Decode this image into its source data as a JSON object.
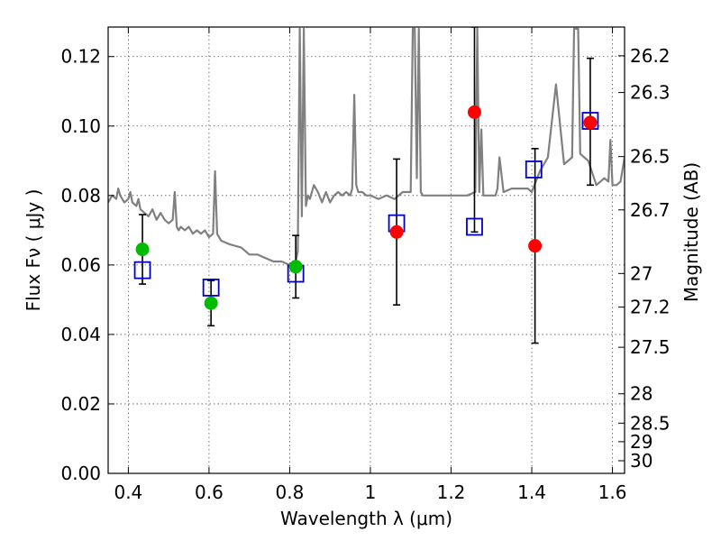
{
  "chart_data": {
    "type": "scatter",
    "xlabel": "Wavelength  λ (μm)",
    "ylabel": "Flux  Fν  ( μJy )",
    "ylabel2": "Magnitude (AB)",
    "xlim": [
      0.35,
      1.63
    ],
    "ylim": [
      0.0,
      0.1285
    ],
    "x_ticks": [
      0.4,
      0.6,
      0.8,
      1.0,
      1.2,
      1.4,
      1.6
    ],
    "x_tick_labels": [
      "0.4",
      "0.6",
      "0.8",
      "1",
      "1.2",
      "1.4",
      "1.6"
    ],
    "y_ticks": [
      0.0,
      0.02,
      0.04,
      0.06,
      0.08,
      0.1,
      0.12
    ],
    "y_tick_labels": [
      "0.00",
      "0.02",
      "0.04",
      "0.06",
      "0.08",
      "0.10",
      "0.12"
    ],
    "mag_ticks": [
      26.2,
      26.3,
      26.5,
      26.7,
      27,
      27.2,
      27.5,
      28,
      28.5,
      29,
      30
    ],
    "mag_tick_labels": [
      "26.2",
      "26.3",
      "26.5",
      "26.7",
      "27",
      "27.2",
      "27.5",
      "28",
      "28.5",
      "29",
      "30"
    ],
    "grid": true,
    "series": [
      {
        "color": "#808080",
        "style": "line",
        "x": [
          0.35,
          0.36,
          0.37,
          0.375,
          0.38,
          0.39,
          0.4,
          0.405,
          0.41,
          0.42,
          0.425,
          0.43,
          0.44,
          0.45,
          0.46,
          0.47,
          0.48,
          0.49,
          0.5,
          0.51,
          0.515,
          0.52,
          0.525,
          0.53,
          0.54,
          0.55,
          0.56,
          0.57,
          0.58,
          0.59,
          0.6,
          0.61,
          0.615,
          0.62,
          0.625,
          0.63,
          0.65,
          0.68,
          0.7,
          0.72,
          0.74,
          0.76,
          0.78,
          0.8,
          0.81,
          0.815,
          0.82,
          0.825,
          0.83,
          0.835,
          0.84,
          0.845,
          0.85,
          0.86,
          0.87,
          0.88,
          0.89,
          0.9,
          0.91,
          0.92,
          0.93,
          0.94,
          0.95,
          0.955,
          0.96,
          0.965,
          0.97,
          0.98,
          0.99,
          1.0,
          1.02,
          1.04,
          1.06,
          1.08,
          1.1,
          1.105,
          1.11,
          1.115,
          1.12,
          1.125,
          1.13,
          1.15,
          1.18,
          1.2,
          1.22,
          1.24,
          1.26,
          1.265,
          1.27,
          1.275,
          1.28,
          1.3,
          1.31,
          1.315,
          1.32,
          1.33,
          1.35,
          1.37,
          1.38,
          1.39,
          1.4,
          1.42,
          1.44,
          1.46,
          1.48,
          1.5,
          1.505,
          1.51,
          1.515,
          1.52,
          1.53,
          1.54,
          1.56,
          1.58,
          1.59,
          1.595,
          1.6,
          1.61,
          1.62,
          1.63
        ],
        "y": [
          0.078,
          0.08,
          0.079,
          0.082,
          0.08,
          0.078,
          0.079,
          0.081,
          0.078,
          0.077,
          0.079,
          0.076,
          0.075,
          0.074,
          0.076,
          0.073,
          0.075,
          0.073,
          0.072,
          0.073,
          0.081,
          0.071,
          0.07,
          0.071,
          0.07,
          0.071,
          0.069,
          0.07,
          0.069,
          0.07,
          0.068,
          0.069,
          0.087,
          0.069,
          0.068,
          0.067,
          0.066,
          0.065,
          0.063,
          0.063,
          0.062,
          0.061,
          0.061,
          0.06,
          0.06,
          0.061,
          0.064,
          0.128,
          0.074,
          0.128,
          0.077,
          0.08,
          0.079,
          0.083,
          0.081,
          0.078,
          0.081,
          0.078,
          0.08,
          0.081,
          0.08,
          0.081,
          0.08,
          0.082,
          0.109,
          0.083,
          0.081,
          0.081,
          0.08,
          0.08,
          0.079,
          0.08,
          0.079,
          0.081,
          0.081,
          0.128,
          0.128,
          0.085,
          0.128,
          0.081,
          0.08,
          0.08,
          0.08,
          0.08,
          0.08,
          0.08,
          0.081,
          0.128,
          0.081,
          0.099,
          0.08,
          0.08,
          0.08,
          0.082,
          0.091,
          0.081,
          0.082,
          0.082,
          0.082,
          0.082,
          0.081,
          0.087,
          0.091,
          0.112,
          0.089,
          0.091,
          0.128,
          0.128,
          0.128,
          0.092,
          0.091,
          0.09,
          0.083,
          0.085,
          0.084,
          0.096,
          0.083,
          0.083,
          0.084,
          0.091
        ]
      },
      {
        "color": "#0000cc",
        "style": "open-square",
        "x": [
          0.435,
          0.605,
          0.815,
          1.065,
          1.258,
          1.405,
          1.545
        ],
        "y": [
          0.0585,
          0.0535,
          0.0575,
          0.072,
          0.071,
          0.0875,
          0.1015
        ]
      },
      {
        "color": "#00bb00",
        "style": "filled-circle",
        "x": [
          0.435,
          0.605,
          0.815
        ],
        "y": [
          0.0645,
          0.049,
          0.0595
        ],
        "yerr_low": [
          0.0545,
          0.0425,
          0.0505
        ],
        "yerr_high": [
          0.0745,
          0.0555,
          0.0685
        ]
      },
      {
        "color": "#ff0000",
        "style": "filled-circle",
        "x": [
          1.065,
          1.258,
          1.408,
          1.545
        ],
        "y": [
          0.0695,
          0.104,
          0.0655,
          0.101
        ],
        "yerr_low": [
          0.0485,
          0.0695,
          0.0375,
          0.083
        ],
        "yerr_high": [
          0.0905,
          0.1285,
          0.0935,
          0.1195
        ]
      }
    ]
  }
}
